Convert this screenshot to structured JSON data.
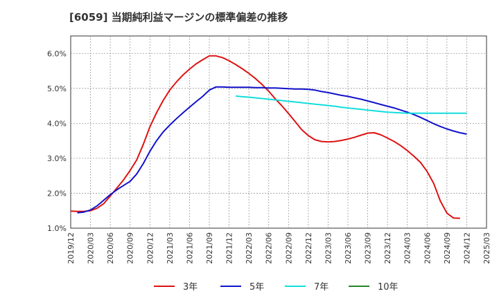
{
  "page": {
    "title": "[6059]  当期純利益マージンの標準偏差の推移"
  },
  "chart_data": {
    "type": "line",
    "title": "[6059]  当期純利益マージンの標準偏差の推移",
    "xlabel": "",
    "ylabel": "",
    "xlim": [
      "2019/12",
      "2025/03"
    ],
    "ylim": [
      1.0,
      6.5
    ],
    "y_ticks": [
      "1.0%",
      "2.0%",
      "3.0%",
      "4.0%",
      "5.0%",
      "6.0%"
    ],
    "y_tick_values": [
      1.0,
      2.0,
      3.0,
      4.0,
      5.0,
      6.0
    ],
    "x_ticks": [
      "2019/12",
      "2020/03",
      "2020/06",
      "2020/09",
      "2020/12",
      "2021/03",
      "2021/06",
      "2021/09",
      "2021/12",
      "2022/03",
      "2022/06",
      "2022/09",
      "2022/12",
      "2023/03",
      "2023/06",
      "2023/09",
      "2023/12",
      "2024/03",
      "2024/06",
      "2024/09",
      "2024/12",
      "2025/03"
    ],
    "grid": true,
    "legend_position": "bottom",
    "series": [
      {
        "name": "3年",
        "color": "#dd1111",
        "points": [
          [
            "2019/12",
            1.49
          ],
          [
            "2020/01",
            1.48
          ],
          [
            "2020/02",
            1.48
          ],
          [
            "2020/03",
            1.5
          ],
          [
            "2020/04",
            1.57
          ],
          [
            "2020/05",
            1.7
          ],
          [
            "2020/06",
            1.92
          ],
          [
            "2020/07",
            2.15
          ],
          [
            "2020/08",
            2.38
          ],
          [
            "2020/09",
            2.65
          ],
          [
            "2020/10",
            2.95
          ],
          [
            "2020/11",
            3.4
          ],
          [
            "2020/12",
            3.9
          ],
          [
            "2021/01",
            4.3
          ],
          [
            "2021/02",
            4.65
          ],
          [
            "2021/03",
            4.95
          ],
          [
            "2021/04",
            5.18
          ],
          [
            "2021/05",
            5.38
          ],
          [
            "2021/06",
            5.55
          ],
          [
            "2021/07",
            5.7
          ],
          [
            "2021/08",
            5.82
          ],
          [
            "2021/09",
            5.93
          ],
          [
            "2021/10",
            5.93
          ],
          [
            "2021/11",
            5.88
          ],
          [
            "2021/12",
            5.79
          ],
          [
            "2022/01",
            5.68
          ],
          [
            "2022/02",
            5.56
          ],
          [
            "2022/03",
            5.43
          ],
          [
            "2022/04",
            5.28
          ],
          [
            "2022/05",
            5.11
          ],
          [
            "2022/06",
            4.92
          ],
          [
            "2022/07",
            4.7
          ],
          [
            "2022/08",
            4.5
          ],
          [
            "2022/09",
            4.28
          ],
          [
            "2022/10",
            4.05
          ],
          [
            "2022/11",
            3.82
          ],
          [
            "2022/12",
            3.65
          ],
          [
            "2023/01",
            3.53
          ],
          [
            "2023/02",
            3.48
          ],
          [
            "2023/03",
            3.47
          ],
          [
            "2023/04",
            3.48
          ],
          [
            "2023/05",
            3.51
          ],
          [
            "2023/06",
            3.55
          ],
          [
            "2023/07",
            3.6
          ],
          [
            "2023/08",
            3.66
          ],
          [
            "2023/09",
            3.72
          ],
          [
            "2023/10",
            3.73
          ],
          [
            "2023/11",
            3.67
          ],
          [
            "2023/12",
            3.58
          ],
          [
            "2024/01",
            3.48
          ],
          [
            "2024/02",
            3.36
          ],
          [
            "2024/03",
            3.22
          ],
          [
            "2024/04",
            3.06
          ],
          [
            "2024/05",
            2.88
          ],
          [
            "2024/06",
            2.62
          ],
          [
            "2024/07",
            2.28
          ],
          [
            "2024/08",
            1.78
          ],
          [
            "2024/09",
            1.43
          ],
          [
            "2024/10",
            1.29
          ],
          [
            "2024/11",
            1.28
          ]
        ]
      },
      {
        "name": "5年",
        "color": "#1111cc",
        "points": [
          [
            "2020/01",
            1.44
          ],
          [
            "2020/02",
            1.46
          ],
          [
            "2020/03",
            1.52
          ],
          [
            "2020/04",
            1.64
          ],
          [
            "2020/05",
            1.8
          ],
          [
            "2020/06",
            1.96
          ],
          [
            "2020/07",
            2.1
          ],
          [
            "2020/08",
            2.22
          ],
          [
            "2020/09",
            2.34
          ],
          [
            "2020/10",
            2.55
          ],
          [
            "2020/11",
            2.85
          ],
          [
            "2020/12",
            3.2
          ],
          [
            "2021/01",
            3.5
          ],
          [
            "2021/02",
            3.75
          ],
          [
            "2021/03",
            3.95
          ],
          [
            "2021/04",
            4.13
          ],
          [
            "2021/05",
            4.3
          ],
          [
            "2021/06",
            4.46
          ],
          [
            "2021/07",
            4.62
          ],
          [
            "2021/08",
            4.77
          ],
          [
            "2021/09",
            4.95
          ],
          [
            "2021/10",
            5.04
          ],
          [
            "2021/11",
            5.04
          ],
          [
            "2021/12",
            5.03
          ],
          [
            "2022/01",
            5.03
          ],
          [
            "2022/02",
            5.03
          ],
          [
            "2022/03",
            5.03
          ],
          [
            "2022/04",
            5.02
          ],
          [
            "2022/05",
            5.02
          ],
          [
            "2022/06",
            5.01
          ],
          [
            "2022/07",
            5.01
          ],
          [
            "2022/08",
            5.0
          ],
          [
            "2022/09",
            4.99
          ],
          [
            "2022/10",
            4.98
          ],
          [
            "2022/11",
            4.98
          ],
          [
            "2022/12",
            4.97
          ],
          [
            "2023/01",
            4.95
          ],
          [
            "2023/02",
            4.91
          ],
          [
            "2023/03",
            4.88
          ],
          [
            "2023/04",
            4.84
          ],
          [
            "2023/05",
            4.8
          ],
          [
            "2023/06",
            4.77
          ],
          [
            "2023/07",
            4.73
          ],
          [
            "2023/08",
            4.69
          ],
          [
            "2023/09",
            4.64
          ],
          [
            "2023/10",
            4.59
          ],
          [
            "2023/11",
            4.54
          ],
          [
            "2023/12",
            4.49
          ],
          [
            "2024/01",
            4.44
          ],
          [
            "2024/02",
            4.38
          ],
          [
            "2024/03",
            4.32
          ],
          [
            "2024/04",
            4.25
          ],
          [
            "2024/05",
            4.17
          ],
          [
            "2024/06",
            4.08
          ],
          [
            "2024/07",
            3.99
          ],
          [
            "2024/08",
            3.91
          ],
          [
            "2024/09",
            3.84
          ],
          [
            "2024/10",
            3.78
          ],
          [
            "2024/11",
            3.73
          ],
          [
            "2024/12",
            3.69
          ]
        ]
      },
      {
        "name": "7年",
        "color": "#11dddd",
        "points": [
          [
            "2022/01",
            4.78
          ],
          [
            "2022/02",
            4.76
          ],
          [
            "2022/03",
            4.75
          ],
          [
            "2022/04",
            4.73
          ],
          [
            "2022/05",
            4.71
          ],
          [
            "2022/06",
            4.69
          ],
          [
            "2022/07",
            4.67
          ],
          [
            "2022/08",
            4.65
          ],
          [
            "2022/09",
            4.63
          ],
          [
            "2022/10",
            4.61
          ],
          [
            "2022/11",
            4.59
          ],
          [
            "2022/12",
            4.57
          ],
          [
            "2023/01",
            4.55
          ],
          [
            "2023/02",
            4.53
          ],
          [
            "2023/03",
            4.51
          ],
          [
            "2023/04",
            4.49
          ],
          [
            "2023/05",
            4.46
          ],
          [
            "2023/06",
            4.44
          ],
          [
            "2023/07",
            4.42
          ],
          [
            "2023/08",
            4.4
          ],
          [
            "2023/09",
            4.38
          ],
          [
            "2023/10",
            4.36
          ],
          [
            "2023/11",
            4.34
          ],
          [
            "2023/12",
            4.32
          ],
          [
            "2024/01",
            4.31
          ],
          [
            "2024/02",
            4.3
          ],
          [
            "2024/03",
            4.29
          ],
          [
            "2024/04",
            4.29
          ],
          [
            "2024/05",
            4.29
          ],
          [
            "2024/06",
            4.29
          ],
          [
            "2024/07",
            4.29
          ],
          [
            "2024/08",
            4.29
          ],
          [
            "2024/09",
            4.29
          ],
          [
            "2024/10",
            4.29
          ],
          [
            "2024/11",
            4.29
          ],
          [
            "2024/12",
            4.29
          ]
        ]
      },
      {
        "name": "10年",
        "color": "#228822",
        "points": []
      }
    ]
  }
}
